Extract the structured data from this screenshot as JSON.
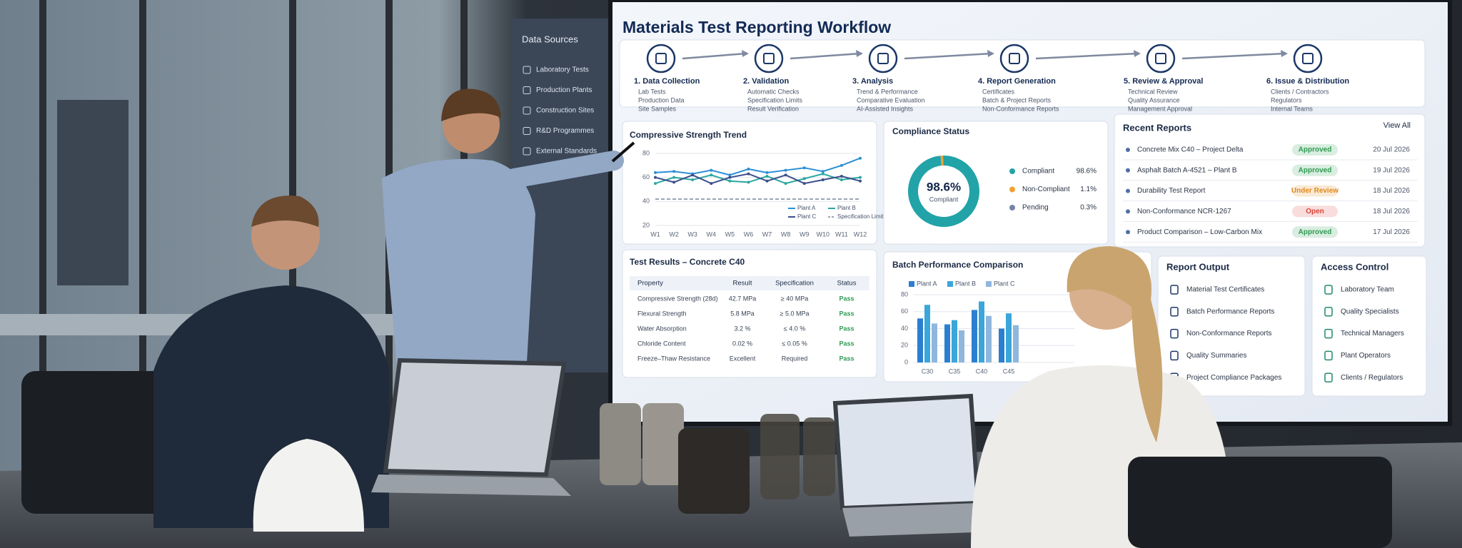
{
  "sidebar": {
    "title": "Data Sources",
    "items": [
      "Laboratory Tests",
      "Production Plants",
      "Construction Sites",
      "R&D Programmes",
      "External Standards"
    ]
  },
  "workflow": {
    "title": "Materials Test Reporting Workflow",
    "steps": [
      {
        "label": "1. Data Collection",
        "items": [
          "Lab Tests",
          "Production Data",
          "Site Samples"
        ]
      },
      {
        "label": "2. Validation",
        "items": [
          "Automatic Checks",
          "Specification Limits",
          "Result Verification"
        ]
      },
      {
        "label": "3. Analysis",
        "items": [
          "Trend & Performance",
          "Comparative Evaluation",
          "AI-Assisted Insights"
        ]
      },
      {
        "label": "4. Report Generation",
        "items": [
          "Certificates",
          "Batch & Project Reports",
          "Non-Conformance Reports"
        ]
      },
      {
        "label": "5. Review & Approval",
        "items": [
          "Technical Review",
          "Quality Assurance",
          "Management Approval"
        ]
      },
      {
        "label": "6. Issue & Distribution",
        "items": [
          "Clients / Contractors",
          "Regulators",
          "Internal Teams"
        ]
      }
    ]
  },
  "chart_data": [
    {
      "type": "line",
      "title": "Compressive Strength Trend",
      "categories": [
        "W1",
        "W2",
        "W3",
        "W4",
        "W5",
        "W6",
        "W7",
        "W8",
        "W9",
        "W10",
        "W11",
        "W12"
      ],
      "ylim": [
        20,
        80
      ],
      "yticks": [
        20,
        40,
        60,
        80
      ],
      "series": [
        {
          "name": "Plant A",
          "color": "#2b8fd6",
          "values": [
            64,
            65,
            63,
            66,
            62,
            67,
            64,
            66,
            68,
            65,
            70,
            76
          ]
        },
        {
          "name": "Plant B",
          "color": "#2aa7a0",
          "values": [
            55,
            60,
            58,
            62,
            57,
            56,
            61,
            55,
            59,
            63,
            58,
            60
          ]
        },
        {
          "name": "Plant C",
          "color": "#3d4f8a",
          "values": [
            60,
            56,
            62,
            55,
            60,
            63,
            57,
            62,
            55,
            58,
            61,
            57
          ]
        },
        {
          "name": "Specification Limit",
          "color": "#9aa3b2",
          "dashed": true,
          "values": [
            42,
            42,
            42,
            42,
            42,
            42,
            42,
            42,
            42,
            42,
            42,
            42
          ]
        }
      ]
    },
    {
      "type": "pie",
      "title": "Compliance Status",
      "categories": [
        "Compliant",
        "Non-Compliant",
        "Pending"
      ],
      "values": [
        98.6,
        1.1,
        0.3
      ],
      "value_labels": [
        "98.6%",
        "1.1%",
        "0.3%"
      ],
      "colors": [
        "#22a3a8",
        "#f0a233",
        "#7484a6"
      ]
    },
    {
      "type": "bar",
      "title": "Batch Performance Comparison",
      "categories": [
        "C30",
        "C35",
        "C40",
        "C45"
      ],
      "ylim": [
        0,
        80
      ],
      "yticks": [
        0,
        20,
        40,
        60,
        80
      ],
      "series": [
        {
          "name": "Plant A",
          "color": "#2b7fd0",
          "values": [
            52,
            45,
            62,
            40
          ]
        },
        {
          "name": "Plant B",
          "color": "#3aa6d9",
          "values": [
            68,
            50,
            72,
            58
          ]
        },
        {
          "name": "Plant C",
          "color": "#8fb7dd",
          "values": [
            46,
            38,
            55,
            44
          ]
        }
      ]
    }
  ],
  "recent_reports": {
    "title": "Recent Reports",
    "action": "View All",
    "rows": [
      {
        "name": "Concrete Mix C40 – Project Delta",
        "status": "Approved",
        "status_color": "#2f9a52",
        "date": "20 Jul 2026"
      },
      {
        "name": "Asphalt Batch A-4521 – Plant B",
        "status": "Approved",
        "status_color": "#2f9a52",
        "date": "19 Jul 2026"
      },
      {
        "name": "Durability Test Report",
        "status": "Under Review",
        "status_color": "#e08a1e",
        "date": "18 Jul 2026"
      },
      {
        "name": "Non-Conformance NCR-1267",
        "status": "Open",
        "status_color": "#d6453d",
        "date": "18 Jul 2026"
      },
      {
        "name": "Product Comparison – Low-Carbon Mix",
        "status": "Approved",
        "status_color": "#2f9a52",
        "date": "17 Jul 2026"
      }
    ]
  },
  "test_results": {
    "title": "Test Results – Concrete C40",
    "header": [
      "Property",
      "Result",
      "Specification",
      "Status"
    ],
    "rows": [
      [
        "Compressive Strength (28d)",
        "42.7 MPa",
        "≥ 40 MPa",
        "Pass"
      ],
      [
        "Flexural Strength",
        "5.8 MPa",
        "≥ 5.0 MPa",
        "Pass"
      ],
      [
        "Water Absorption",
        "3.2 %",
        "≤ 4.0 %",
        "Pass"
      ],
      [
        "Chloride Content",
        "0.02 %",
        "≤ 0.05 %",
        "Pass"
      ],
      [
        "Freeze–Thaw Resistance",
        "Excellent",
        "Required",
        "Pass"
      ]
    ]
  },
  "report_output": {
    "title": "Report Output",
    "items": [
      "Material Test Certificates",
      "Batch Performance Reports",
      "Non-Conformance Reports",
      "Quality Summaries",
      "Project Compliance Packages"
    ]
  },
  "access_control": {
    "title": "Access Control",
    "items": [
      "Laboratory Team",
      "Quality Specialists",
      "Technical Managers",
      "Plant Operators",
      "Clients / Regulators"
    ]
  }
}
